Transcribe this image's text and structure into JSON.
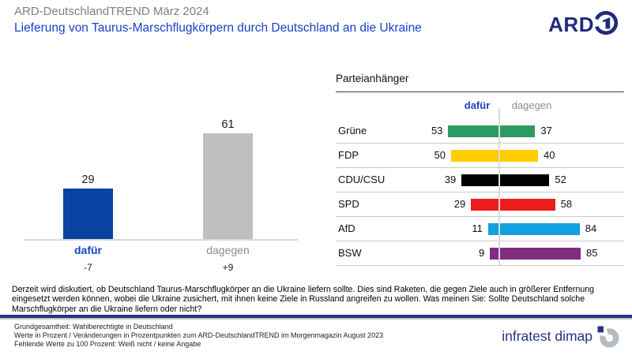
{
  "header": {
    "supertitle": "ARD-DeutschlandTREND März 2024",
    "title": "Lieferung von Taurus-Marschflugkörpern durch Deutschland an die Ukraine",
    "broadcaster_logo": "ARD"
  },
  "colors": {
    "title_blue": "#1942c6",
    "logo_navy": "#1f2c7b",
    "bar_blue": "#0a42a1",
    "bar_gray": "#bfbfbf",
    "muted_gray": "#8c8c8c",
    "rule_navy": "#2a3187"
  },
  "chart_data": [
    {
      "type": "bar",
      "title": "Lieferung von Taurus-Marschflugkörpern durch Deutschland an die Ukraine",
      "categories": [
        "dafür",
        "dagegen"
      ],
      "values": [
        29,
        61
      ],
      "changes": [
        "-7",
        "+9"
      ],
      "colors": [
        "#0a42a1",
        "#bfbfbf"
      ],
      "label_colors": [
        "#1942c6",
        "#8c8c8c"
      ],
      "ylim": [
        0,
        70
      ],
      "unit": "Prozent",
      "grid": false
    },
    {
      "type": "bar",
      "subtype": "diverging-horizontal",
      "title": "Parteianhänger",
      "col_headers": [
        "dafür",
        "dagegen"
      ],
      "unit": "Prozent",
      "rows": [
        {
          "party": "Grüne",
          "dafuer": 53,
          "dagegen": 37,
          "color": "#2e9a63"
        },
        {
          "party": "FDP",
          "dafuer": 50,
          "dagegen": 40,
          "color": "#ffcc00"
        },
        {
          "party": "CDU/CSU",
          "dafuer": 39,
          "dagegen": 52,
          "color": "#000000"
        },
        {
          "party": "SPD",
          "dafuer": 29,
          "dagegen": 58,
          "color": "#ee1c1c"
        },
        {
          "party": "AfD",
          "dafuer": 11,
          "dagegen": 84,
          "color": "#14a0e0"
        },
        {
          "party": "BSW",
          "dafuer": 9,
          "dagegen": 85,
          "color": "#7e2d81"
        }
      ]
    }
  ],
  "question": "Derzeit wird diskutiert, ob Deutschland Taurus-Marschflugkörper an die Ukraine liefern sollte. Dies sind Raketen, die gegen Ziele auch in größerer Entfernung eingesetzt werden können, wobei die Ukraine zusichert, mit ihnen keine Ziele in Russland angreifen zu wollen. Was meinen Sie: Sollte Deutschland solche Marschflugkörper an die Ukraine liefern oder nicht?",
  "footer": {
    "line1": "Grundgesamtheit:  Wahlberechtigte in Deutschland",
    "line2": "Werte in Prozent / Veränderungen  in Prozentpunkten zum ARD-DeutschlandTREND  im Morgenmagazin August 2023",
    "line3": "Fehlende  Werte zu 100 Prozent: Weiß nicht / keine Angabe",
    "brand": "infratest dimap"
  }
}
